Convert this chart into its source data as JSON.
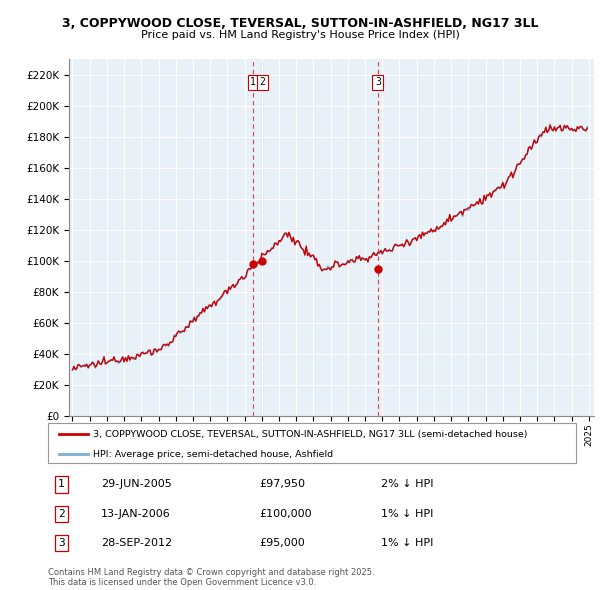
{
  "title1": "3, COPPYWOOD CLOSE, TEVERSAL, SUTTON-IN-ASHFIELD, NG17 3LL",
  "title2": "Price paid vs. HM Land Registry's House Price Index (HPI)",
  "legend_property": "3, COPPYWOOD CLOSE, TEVERSAL, SUTTON-IN-ASHFIELD, NG17 3LL (semi-detached house)",
  "legend_hpi": "HPI: Average price, semi-detached house, Ashfield",
  "ylim": [
    0,
    230000
  ],
  "yticks": [
    0,
    20000,
    40000,
    60000,
    80000,
    100000,
    120000,
    140000,
    160000,
    180000,
    200000,
    220000
  ],
  "ytick_labels": [
    "£0",
    "£20K",
    "£40K",
    "£60K",
    "£80K",
    "£100K",
    "£120K",
    "£140K",
    "£160K",
    "£180K",
    "£200K",
    "£220K"
  ],
  "xstart_year": 1995,
  "xend_year": 2025,
  "hpi_color": "#7aaed4",
  "property_color": "#cc0000",
  "bg_color": "#ffffff",
  "chart_bg_color": "#e8f0f8",
  "grid_color": "#ffffff",
  "transactions": [
    {
      "date": 2005.49,
      "price": 97950,
      "label": "1"
    },
    {
      "date": 2006.04,
      "price": 100000,
      "label": "2"
    },
    {
      "date": 2012.74,
      "price": 95000,
      "label": "3"
    }
  ],
  "transaction_details": [
    {
      "num": "1",
      "date": "29-JUN-2005",
      "price": "£97,950",
      "change": "2% ↓ HPI"
    },
    {
      "num": "2",
      "date": "13-JAN-2006",
      "price": "£100,000",
      "change": "1% ↓ HPI"
    },
    {
      "num": "3",
      "date": "28-SEP-2012",
      "price": "£95,000",
      "change": "1% ↓ HPI"
    }
  ],
  "footer_line1": "Contains HM Land Registry data © Crown copyright and database right 2025.",
  "footer_line2": "This data is licensed under the Open Government Licence v3.0."
}
